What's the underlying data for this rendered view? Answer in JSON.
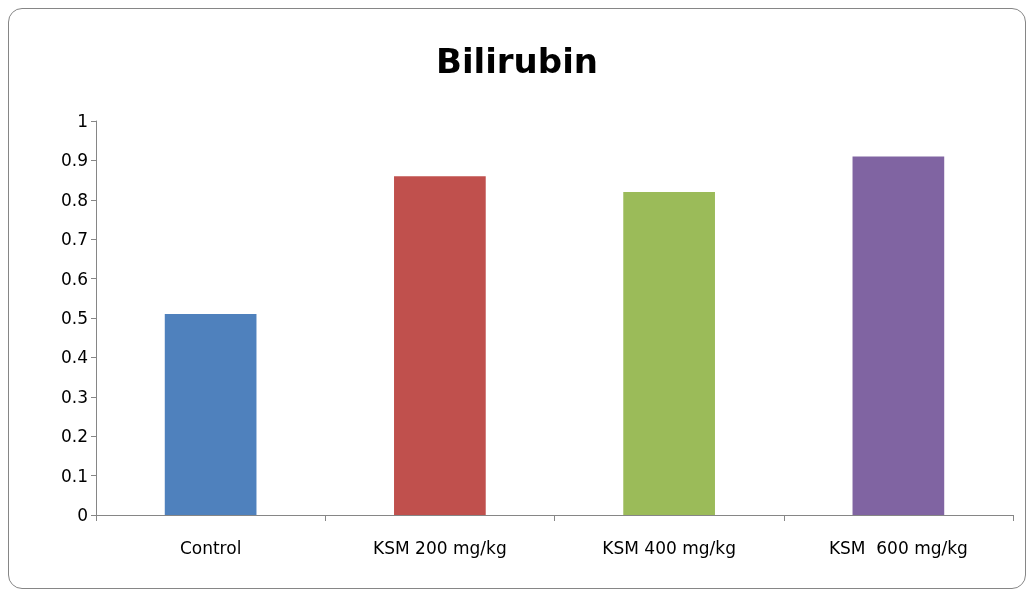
{
  "chart_data": {
    "type": "bar",
    "title": "Bilirubin",
    "categories": [
      "Control",
      "KSM 200 mg/kg",
      "KSM 400 mg/kg",
      "KSM  600 mg/kg"
    ],
    "values": [
      0.51,
      0.86,
      0.82,
      0.91
    ],
    "colors": [
      "#4f81bd",
      "#c0504d",
      "#9bbb59",
      "#8064a2"
    ],
    "ylim": [
      0,
      1
    ],
    "yticks": [
      0,
      0.1,
      0.2,
      0.3,
      0.4,
      0.5,
      0.6,
      0.7,
      0.8,
      0.9,
      1
    ],
    "grid": false
  }
}
